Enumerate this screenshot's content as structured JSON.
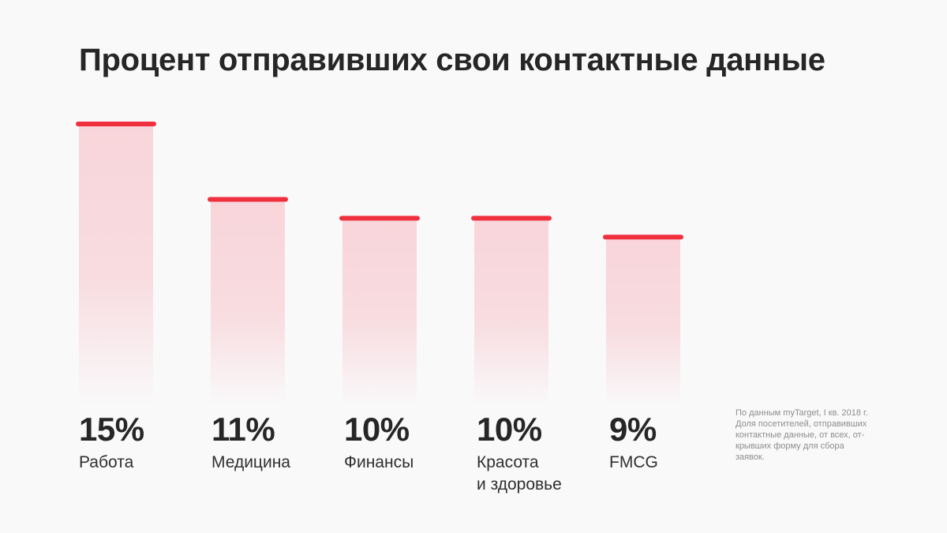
{
  "title": "Процент отправивших свои контактные данные",
  "chart_data": {
    "type": "bar",
    "title": "Процент отправивших свои контактные данные",
    "categories": [
      "Работа",
      "Медицина",
      "Финансы",
      "Красота\nи здоровье",
      "FMCG"
    ],
    "values": [
      15,
      11,
      10,
      10,
      9
    ],
    "value_labels": [
      "15%",
      "11%",
      "10%",
      "10%",
      "9%"
    ],
    "unit": "%",
    "xlabel": "",
    "ylabel": "",
    "ylim": [
      0,
      15
    ],
    "grid": false,
    "legend": "none"
  },
  "colors": {
    "accent": "#f0303f",
    "bar_fill": "#f8d3d8",
    "background": "#f9f9fa",
    "text": "#262626",
    "note_text": "#8d8d8d"
  },
  "note": "По данным myTarget, I кв. 2018 г.\nДоля посетителей, отправивших\nконтактные данные, от всех, от-\nкрывших форму для сбора\nзаявок."
}
